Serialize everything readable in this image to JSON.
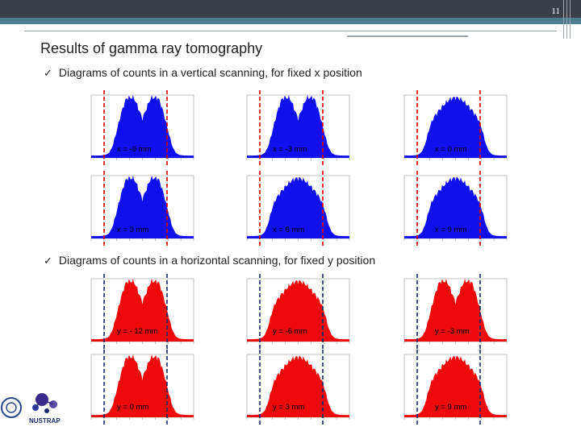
{
  "slide": {
    "number": "11"
  },
  "title": "Results of gamma ray tomography",
  "bullets": [
    "Diagrams of counts in a vertical scanning, for fixed x position",
    "Diagrams of counts in a horizontal scanning, for fixed y position"
  ],
  "logo": {
    "text": "NUSTRAP"
  },
  "colors": {
    "vertical_fill": "#1010ee",
    "horizontal_fill": "#ee0a0a",
    "dash_red": "#e00000",
    "dash_navy": "#1a2a6a"
  },
  "chart_data": [
    {
      "type": "area",
      "scan": "vertical",
      "label": "x = -9 mm",
      "profile": "double"
    },
    {
      "type": "area",
      "scan": "vertical",
      "label": "x = -3 mm",
      "profile": "double"
    },
    {
      "type": "area",
      "scan": "vertical",
      "label": "x = 0 mm",
      "profile": "single"
    },
    {
      "type": "area",
      "scan": "vertical",
      "label": "x = 3 mm",
      "profile": "double"
    },
    {
      "type": "area",
      "scan": "vertical",
      "label": "x = 6 mm",
      "profile": "single"
    },
    {
      "type": "area",
      "scan": "vertical",
      "label": "x = 9 mm",
      "profile": "single"
    },
    {
      "type": "area",
      "scan": "horizontal",
      "label": "y = - 12 mm",
      "profile": "double"
    },
    {
      "type": "area",
      "scan": "horizontal",
      "label": "y = -6 mm",
      "profile": "single"
    },
    {
      "type": "area",
      "scan": "horizontal",
      "label": "y = -3 mm",
      "profile": "double"
    },
    {
      "type": "area",
      "scan": "horizontal",
      "label": "y = 0 mm",
      "profile": "double"
    },
    {
      "type": "area",
      "scan": "horizontal",
      "label": "y = 3 mm",
      "profile": "single"
    },
    {
      "type": "area",
      "scan": "horizontal",
      "label": "y = 9 mm",
      "profile": "single"
    }
  ]
}
